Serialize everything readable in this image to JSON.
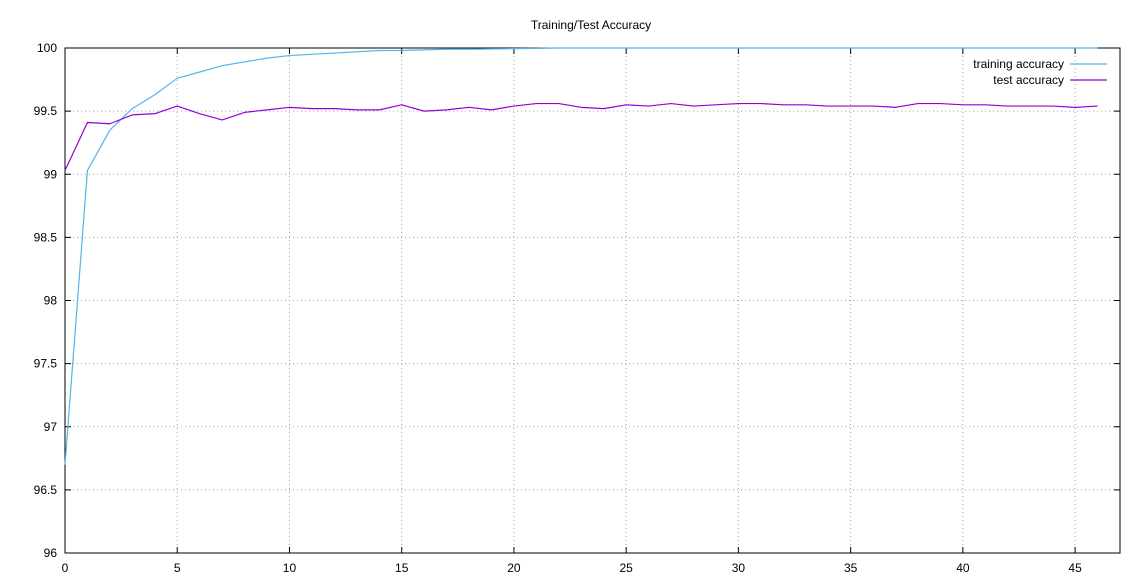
{
  "chart_data": {
    "type": "line",
    "title": "Training/Test Accuracy",
    "xlabel": "",
    "ylabel": "",
    "xlim": [
      0,
      47
    ],
    "ylim": [
      96,
      100
    ],
    "x_ticks": [
      0,
      5,
      10,
      15,
      20,
      25,
      30,
      35,
      40,
      45
    ],
    "x_tick_labels": [
      "0",
      "5",
      "10",
      "15",
      "20",
      "25",
      "30",
      "35",
      "40",
      "45"
    ],
    "y_ticks": [
      96,
      96.5,
      97,
      97.5,
      98,
      98.5,
      99,
      99.5,
      100
    ],
    "y_tick_labels": [
      "96",
      "96.5",
      "97",
      "97.5",
      "98",
      "98.5",
      "99",
      "99.5",
      "100"
    ],
    "grid": true,
    "legend_position": "top-right",
    "series": [
      {
        "name": "training accuracy",
        "color": "#56b4e9",
        "x": [
          0,
          1,
          2,
          3,
          4,
          5,
          6,
          7,
          8,
          9,
          10,
          11,
          12,
          13,
          14,
          15,
          16,
          17,
          18,
          19,
          20,
          21,
          22,
          23,
          24,
          25,
          26,
          27,
          28,
          29,
          30,
          31,
          32,
          33,
          34,
          35,
          36,
          37,
          38,
          39,
          40,
          41,
          42,
          43,
          44,
          45,
          46
        ],
        "values": [
          96.7,
          99.03,
          99.35,
          99.52,
          99.63,
          99.76,
          99.81,
          99.86,
          99.89,
          99.92,
          99.94,
          99.95,
          99.96,
          99.97,
          99.98,
          99.98,
          99.985,
          99.99,
          99.99,
          99.993,
          99.995,
          99.997,
          100.0,
          100.0,
          100.0,
          100.0,
          100.0,
          100.0,
          100.0,
          100.0,
          100.0,
          100.0,
          100.0,
          100.0,
          100.0,
          100.0,
          100.0,
          100.0,
          100.0,
          100.0,
          100.0,
          100.0,
          100.0,
          100.0,
          100.0,
          100.0,
          100.0
        ]
      },
      {
        "name": "test accuracy",
        "color": "#9400d3",
        "x": [
          0,
          1,
          2,
          3,
          4,
          5,
          6,
          7,
          8,
          9,
          10,
          11,
          12,
          13,
          14,
          15,
          16,
          17,
          18,
          19,
          20,
          21,
          22,
          23,
          24,
          25,
          26,
          27,
          28,
          29,
          30,
          31,
          32,
          33,
          34,
          35,
          36,
          37,
          38,
          39,
          40,
          41,
          42,
          43,
          44,
          45,
          46
        ],
        "values": [
          99.03,
          99.41,
          99.4,
          99.47,
          99.48,
          99.54,
          99.48,
          99.43,
          99.49,
          99.51,
          99.53,
          99.52,
          99.52,
          99.51,
          99.51,
          99.55,
          99.5,
          99.51,
          99.53,
          99.51,
          99.54,
          99.56,
          99.56,
          99.53,
          99.52,
          99.55,
          99.54,
          99.56,
          99.54,
          99.55,
          99.56,
          99.56,
          99.55,
          99.55,
          99.54,
          99.54,
          99.54,
          99.53,
          99.56,
          99.56,
          99.55,
          99.55,
          99.54,
          99.54,
          99.54,
          99.53,
          99.54
        ]
      }
    ]
  }
}
